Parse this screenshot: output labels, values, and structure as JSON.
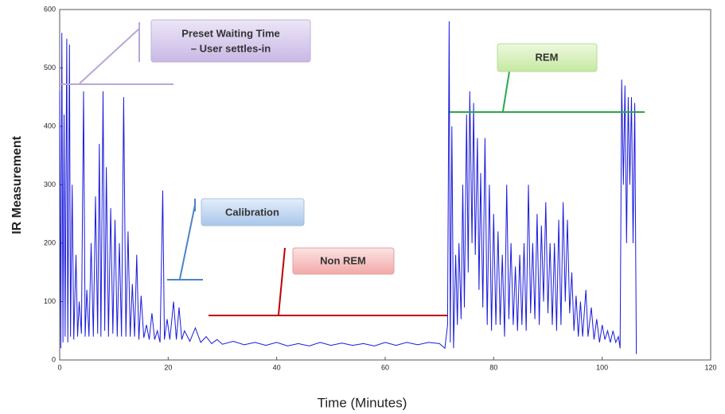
{
  "chart_data": {
    "type": "line",
    "ylabel": "IR Measurement",
    "xlabel": "Time (Minutes)",
    "color": "#1a1adc",
    "xlim": [
      0,
      120
    ],
    "xticks": [
      0,
      20,
      40,
      60,
      80,
      100,
      120
    ],
    "ylim": [
      0,
      600
    ],
    "yticks": [
      0,
      100,
      200,
      300,
      400,
      500,
      600
    ],
    "x": [
      0,
      0.2,
      0.4,
      0.6,
      0.8,
      1.0,
      1.3,
      1.5,
      1.8,
      2.0,
      2.3,
      2.6,
      3,
      3.3,
      3.6,
      4,
      4.4,
      4.7,
      5,
      5.4,
      5.8,
      6.2,
      6.6,
      7,
      7.3,
      7.6,
      8,
      8.3,
      8.6,
      9,
      9.4,
      9.8,
      10.2,
      10.6,
      11,
      11.4,
      11.8,
      12.2,
      12.6,
      13,
      13.4,
      13.8,
      14.2,
      14.6,
      15,
      15.5,
      16,
      16.5,
      17,
      17.5,
      18,
      18.5,
      19,
      19.3,
      19.8,
      20.3,
      21,
      21.5,
      22,
      22.5,
      23,
      24,
      25,
      26,
      27,
      28,
      29,
      30,
      32,
      34,
      36,
      38,
      40,
      42,
      44,
      46,
      48,
      50,
      52,
      54,
      56,
      58,
      60,
      62,
      64,
      66,
      68,
      70,
      71,
      71.5,
      71.8,
      72,
      72.3,
      72.6,
      73,
      73.3,
      73.6,
      74,
      74.3,
      74.6,
      75,
      75.3,
      75.6,
      76,
      76.3,
      76.6,
      77,
      77.3,
      77.6,
      78,
      78.4,
      78.8,
      79.2,
      79.6,
      80,
      80.4,
      80.8,
      81.2,
      81.6,
      82,
      82.4,
      82.8,
      83.2,
      83.6,
      84,
      84.4,
      84.8,
      85.2,
      85.6,
      86,
      86.4,
      86.8,
      87.2,
      87.6,
      88,
      88.4,
      88.8,
      89.2,
      89.6,
      90,
      90.4,
      90.8,
      91.2,
      91.6,
      92,
      92.4,
      92.8,
      93.2,
      93.6,
      94,
      94.4,
      94.8,
      95.2,
      95.6,
      96,
      96.4,
      97,
      97.4,
      98,
      98.5,
      99,
      99.5,
      100,
      100.5,
      101,
      101.5,
      102,
      102.5,
      103,
      103.3,
      103.6,
      103.9,
      104.2,
      104.5,
      104.8,
      105.1,
      105.4,
      105.7,
      106,
      106.3
    ],
    "values": [
      460,
      20,
      560,
      30,
      420,
      40,
      550,
      30,
      540,
      40,
      300,
      35,
      180,
      40,
      100,
      45,
      460,
      40,
      120,
      40,
      200,
      40,
      280,
      45,
      370,
      40,
      460,
      50,
      330,
      40,
      260,
      45,
      240,
      40,
      200,
      40,
      450,
      40,
      220,
      40,
      130,
      40,
      180,
      35,
      110,
      38,
      60,
      35,
      80,
      35,
      50,
      30,
      290,
      35,
      70,
      35,
      100,
      35,
      90,
      35,
      50,
      32,
      55,
      30,
      40,
      28,
      35,
      27,
      32,
      26,
      30,
      25,
      30,
      24,
      28,
      24,
      30,
      25,
      29,
      25,
      28,
      24,
      30,
      25,
      30,
      26,
      30,
      28,
      20,
      60,
      580,
      30,
      400,
      20,
      180,
      60,
      200,
      70,
      300,
      90,
      420,
      150,
      460,
      200,
      440,
      180,
      380,
      120,
      320,
      90,
      380,
      60,
      300,
      50,
      250,
      60,
      220,
      60,
      180,
      40,
      300,
      70,
      200,
      60,
      160,
      50,
      180,
      60,
      200,
      50,
      300,
      80,
      200,
      70,
      250,
      60,
      230,
      100,
      270,
      80,
      200,
      60,
      200,
      50,
      240,
      60,
      270,
      100,
      240,
      80,
      150,
      50,
      110,
      40,
      100,
      40,
      120,
      40,
      90,
      35,
      70,
      30,
      60,
      35,
      50,
      30,
      50,
      30,
      40,
      20,
      480,
      300,
      470,
      200,
      450,
      300,
      450,
      200,
      440,
      10
    ],
    "annotations": [
      {
        "lines": [
          "Preset Waiting Time",
          "– User settles-in"
        ]
      },
      {
        "lines": [
          "Calibration"
        ]
      },
      {
        "lines": [
          "Non REM"
        ]
      },
      {
        "lines": [
          "REM"
        ]
      }
    ]
  }
}
